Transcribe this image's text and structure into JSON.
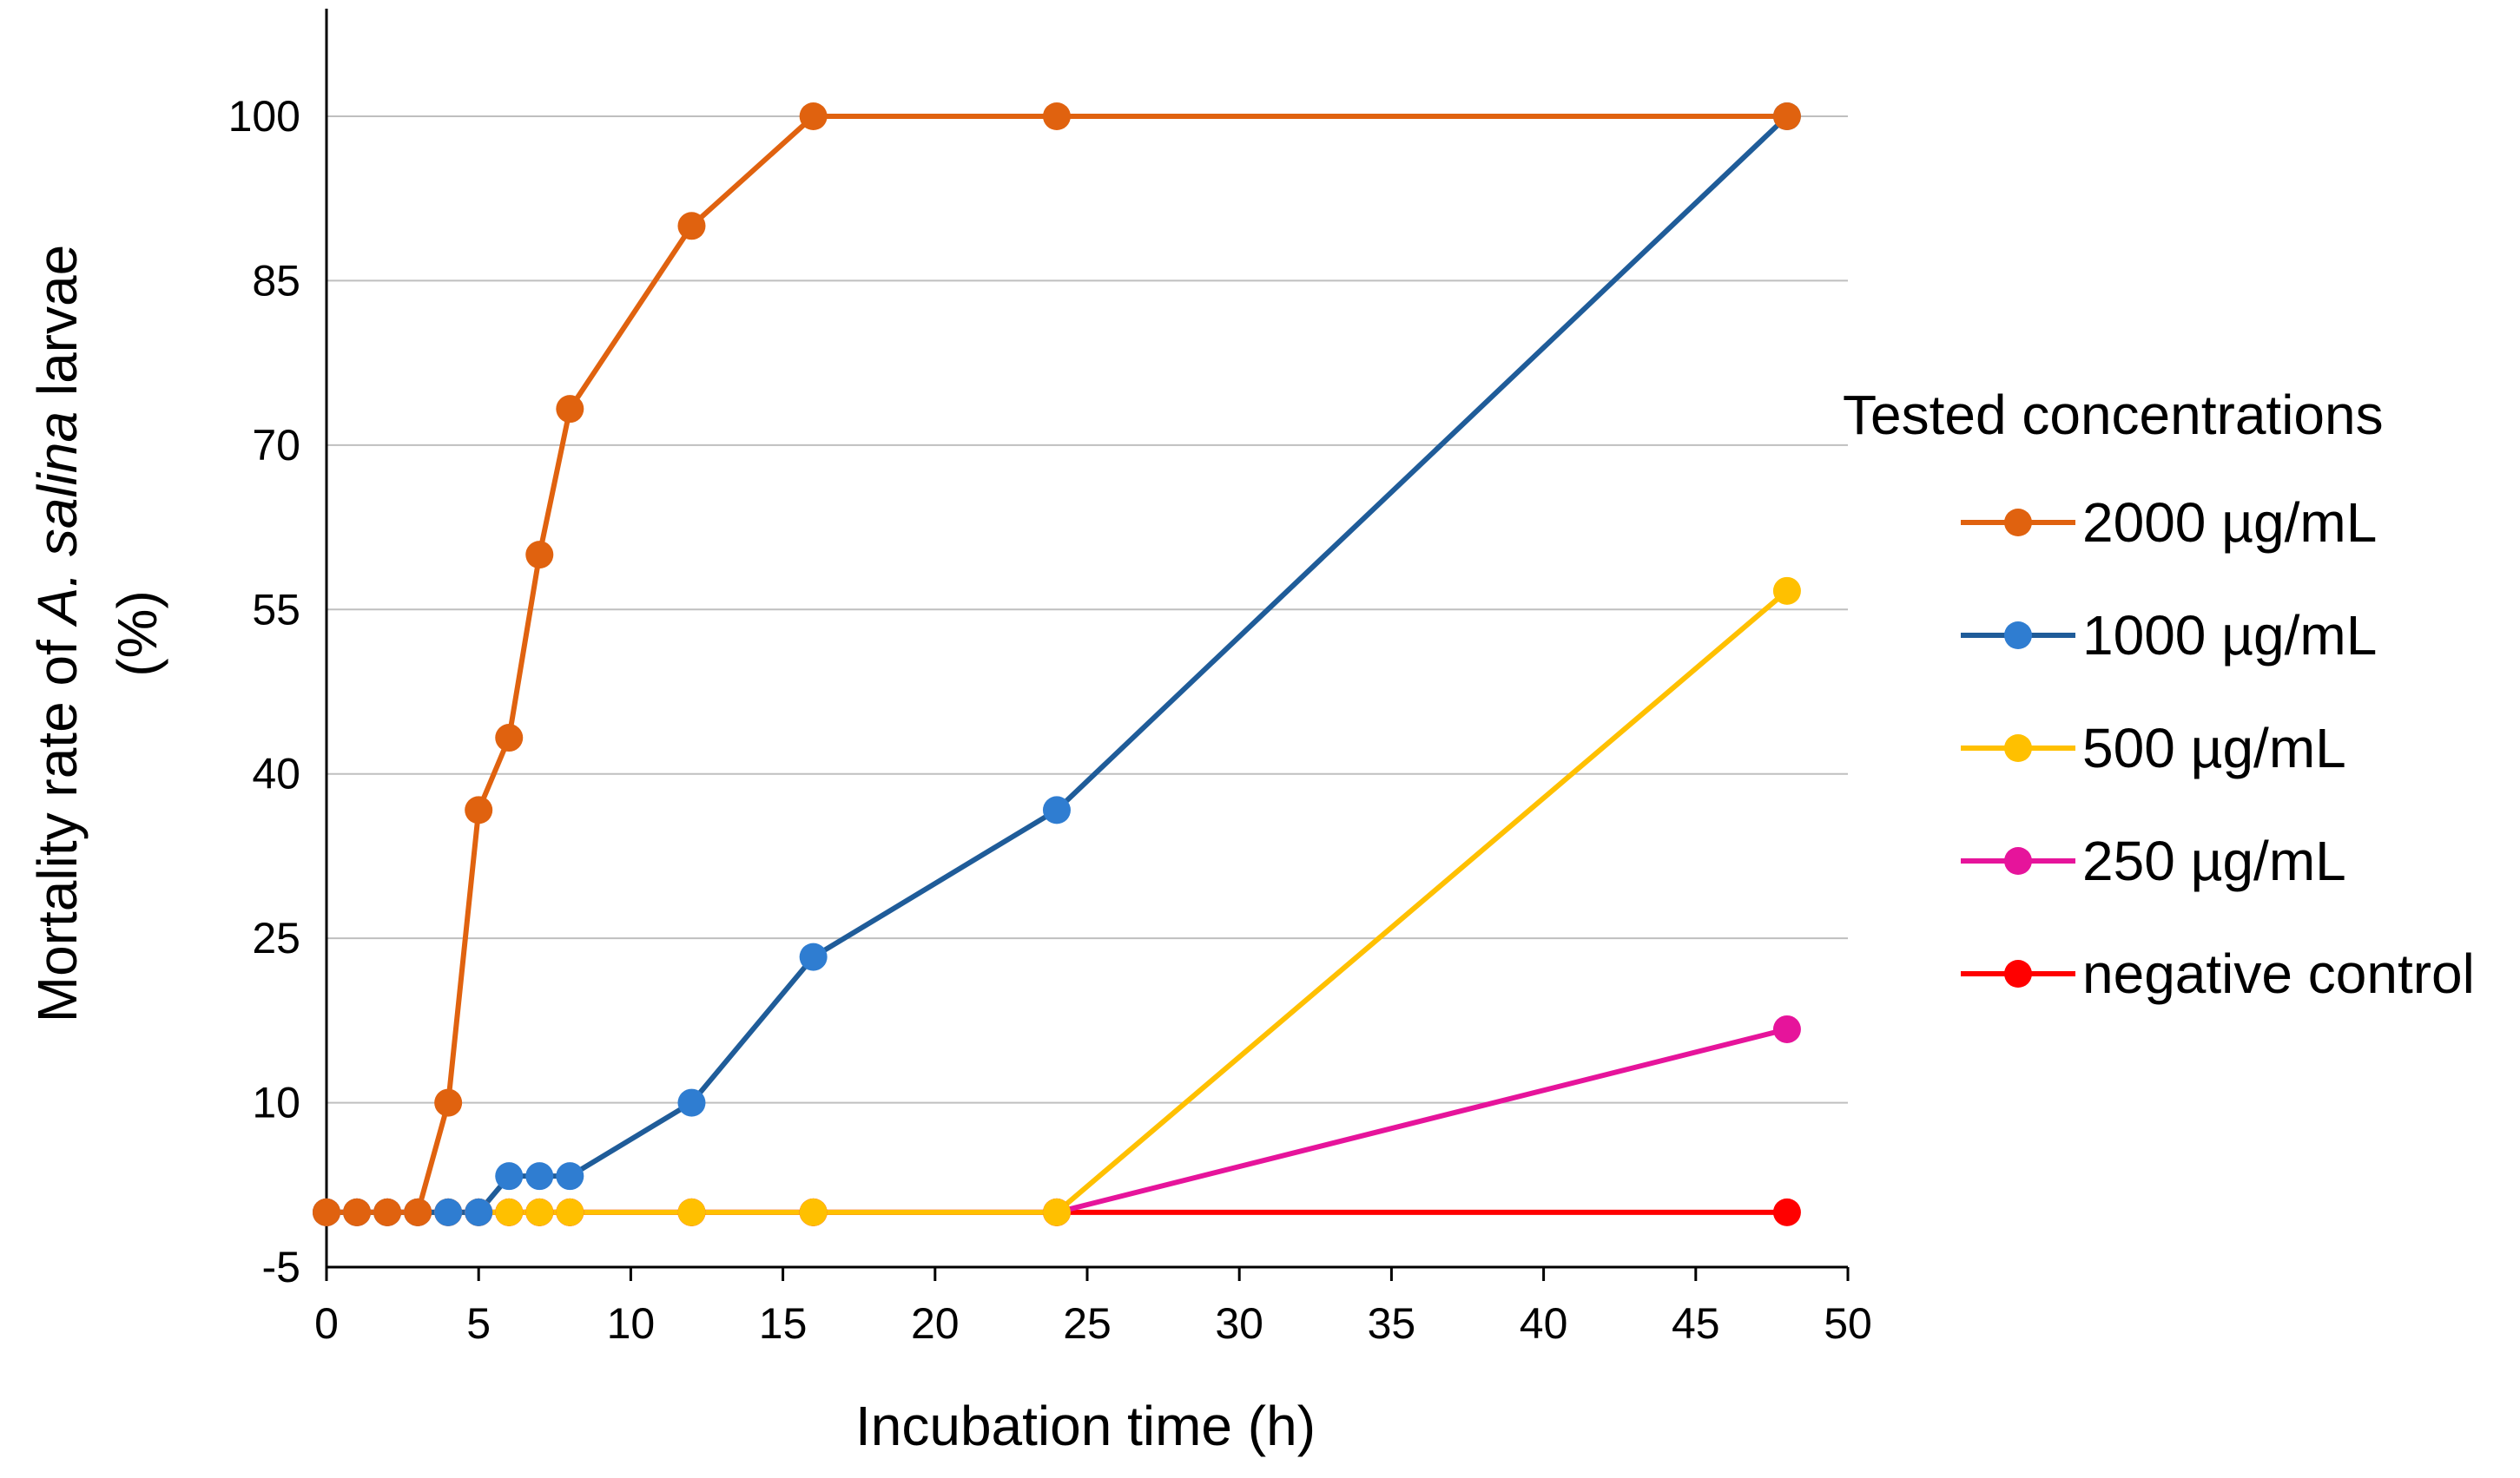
{
  "chart_data": {
    "type": "line",
    "title": "",
    "xlabel": "Incubation time (h)",
    "ylabel_prefix": "Mortality rate of ",
    "ylabel_italic": "A. salina",
    "ylabel_suffix": " larvae",
    "ylabel_line2": "(%)",
    "xlim": [
      0,
      50
    ],
    "ylim": [
      -5,
      105
    ],
    "x_ticks": [
      0,
      5,
      10,
      15,
      20,
      25,
      30,
      35,
      40,
      45,
      50
    ],
    "y_ticks": [
      -5,
      10,
      25,
      40,
      55,
      70,
      85,
      100
    ],
    "grid": true,
    "legend": {
      "title": "Tested concentrations",
      "placement": "right"
    },
    "series": [
      {
        "name": "2000 µg/mL",
        "color": "#e0620f",
        "x": [
          0,
          1,
          2,
          3,
          4,
          5,
          6,
          7,
          8,
          12,
          16,
          24,
          48
        ],
        "y": [
          0,
          0,
          0,
          0,
          10,
          36.7,
          43.3,
          60,
          73.3,
          90,
          100,
          100,
          100
        ]
      },
      {
        "name": "1000 µg/mL",
        "color": "#1f5c99",
        "marker_color": "#2f7dd1",
        "x": [
          0,
          1,
          2,
          3,
          4,
          5,
          6,
          7,
          8,
          12,
          16,
          24,
          48
        ],
        "y": [
          0,
          0,
          0,
          0,
          0,
          0,
          3.3,
          3.3,
          3.3,
          10,
          23.3,
          36.7,
          100
        ]
      },
      {
        "name": "500 µg/mL",
        "color": "#ffc000",
        "x": [
          0,
          1,
          2,
          3,
          4,
          5,
          6,
          7,
          8,
          12,
          16,
          24,
          48
        ],
        "y": [
          0,
          0,
          0,
          0,
          0,
          0,
          0,
          0,
          0,
          0,
          0,
          0,
          56.7
        ]
      },
      {
        "name": "250 µg/mL",
        "color": "#e6149b",
        "x": [
          0,
          1,
          2,
          3,
          4,
          5,
          6,
          7,
          8,
          12,
          16,
          24,
          48
        ],
        "y": [
          0,
          0,
          0,
          0,
          0,
          0,
          0,
          0,
          0,
          0,
          0,
          0,
          16.7
        ]
      },
      {
        "name": "negative control",
        "color": "#ff0000",
        "x": [
          0,
          1,
          2,
          3,
          4,
          5,
          6,
          7,
          8,
          12,
          16,
          24,
          48
        ],
        "y": [
          0,
          0,
          0,
          0,
          0,
          0,
          0,
          0,
          0,
          0,
          0,
          0,
          0
        ]
      }
    ]
  }
}
